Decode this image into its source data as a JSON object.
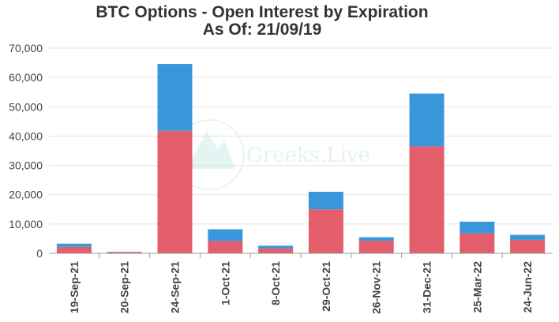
{
  "chart_data": {
    "type": "bar",
    "stacked": true,
    "title": "BTC Options - Open Interest by Expiration",
    "subtitle": "As Of: 21/09/19",
    "xlabel": "",
    "ylabel": "",
    "ylim": [
      0,
      70000
    ],
    "yticks": [
      0,
      10000,
      20000,
      30000,
      40000,
      50000,
      60000,
      70000
    ],
    "ytick_labels": [
      "0",
      "10,000",
      "20,000",
      "30,000",
      "40,000",
      "50,000",
      "60,000",
      "70,000"
    ],
    "grid": true,
    "legend": "none",
    "categories": [
      "19-Sep-21",
      "20-Sep-21",
      "24-Sep-21",
      "1-Oct-21",
      "8-Oct-21",
      "29-Oct-21",
      "26-Nov-21",
      "31-Dec-21",
      "25-Mar-22",
      "24-Jun-22"
    ],
    "series": [
      {
        "color": "#e35d6a",
        "values": [
          2200,
          400,
          41800,
          4200,
          1700,
          15000,
          4300,
          36500,
          6800,
          4600
        ]
      },
      {
        "color": "#3a96db",
        "values": [
          1100,
          100,
          22800,
          4000,
          900,
          6000,
          1200,
          18000,
          4000,
          1700
        ]
      }
    ]
  },
  "watermark": {
    "text": "Greeks.Live"
  }
}
